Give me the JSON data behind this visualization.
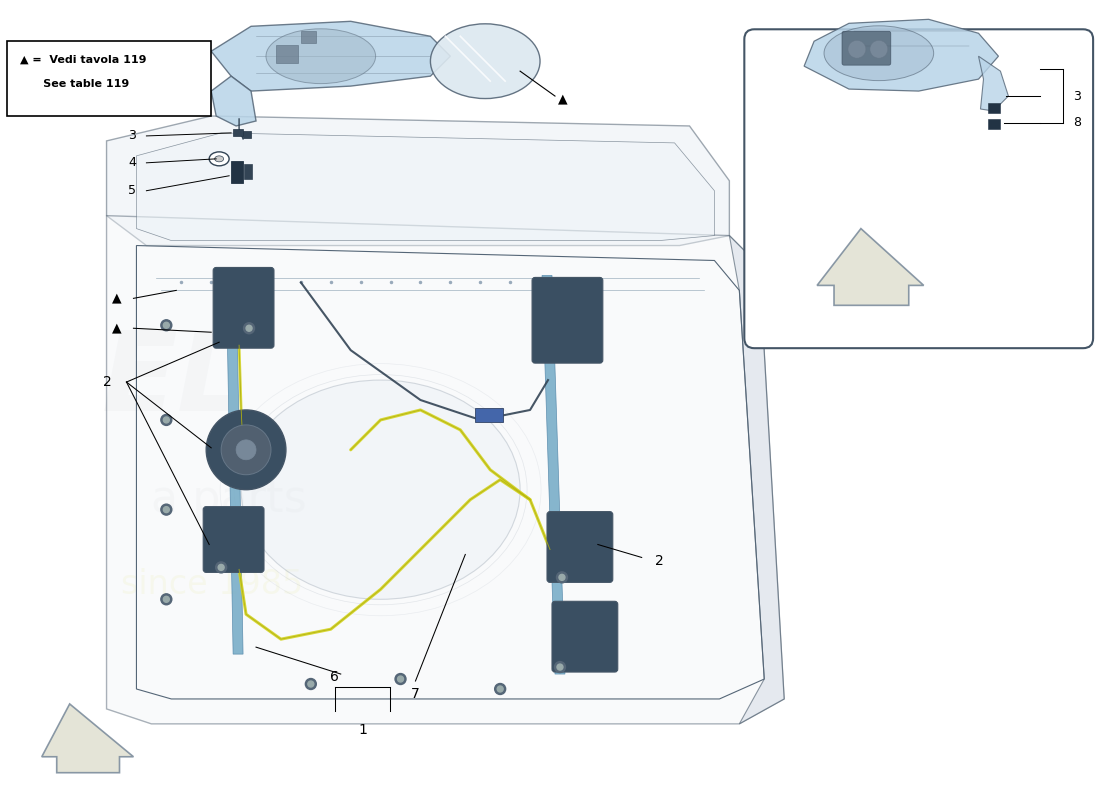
{
  "bg_color": "#ffffff",
  "fig_width": 11.0,
  "fig_height": 8.0,
  "mirror_fill": "#b8d4e8",
  "mirror_edge": "#556677",
  "door_fill": "#e8eef4",
  "door_edge": "#445566",
  "accent_blue": "#7aaec8",
  "yellow_wire": "#d4d420",
  "dark_part": "#445566",
  "inset_bg": "#ffffff",
  "inset_edge": "#445566",
  "arrow_fill": "#e0e0d0",
  "watermark_grey": "#aaaaaa",
  "watermark_yellow": "#d8d820",
  "label_fs": 9,
  "lw_main": 1.0,
  "lw_thin": 0.6
}
